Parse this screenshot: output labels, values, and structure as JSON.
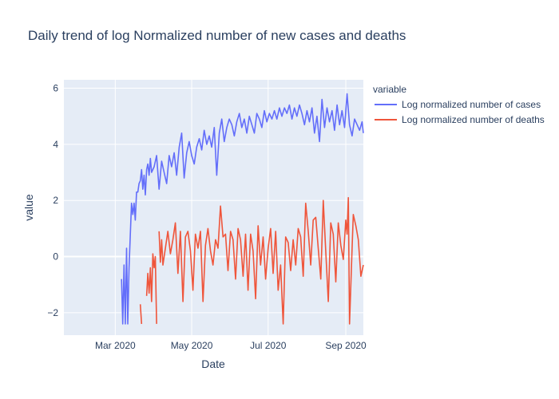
{
  "chart_data": {
    "type": "line",
    "title": "Daily trend of log Normalized number of new cases and deaths",
    "xlabel": "Date",
    "ylabel": "value",
    "x_range": [
      "2020-01-20",
      "2020-09-15"
    ],
    "ylim": [
      -2.8,
      6.3
    ],
    "x_ticks": [
      {
        "date": "2020-03-01",
        "label": "Mar 2020"
      },
      {
        "date": "2020-05-01",
        "label": "May 2020"
      },
      {
        "date": "2020-07-01",
        "label": "Jul 2020"
      },
      {
        "date": "2020-09-01",
        "label": "Sep 2020"
      }
    ],
    "y_ticks": [
      -2,
      0,
      2,
      4,
      6
    ],
    "grid": true,
    "legend": {
      "title": "variable",
      "position": "right"
    },
    "series": [
      {
        "name": "Log normalized number of cases",
        "color": "#636efa",
        "points": [
          [
            "2020-03-06",
            -0.8
          ],
          [
            "2020-03-07",
            -2.4
          ],
          [
            "2020-03-08",
            -0.3
          ],
          [
            "2020-03-09",
            -2.4
          ],
          [
            "2020-03-10",
            0.3
          ],
          [
            "2020-03-11",
            -2.4
          ],
          [
            "2020-03-12",
            -0.4
          ],
          [
            "2020-03-13",
            0.8
          ],
          [
            "2020-03-14",
            1.9
          ],
          [
            "2020-03-15",
            1.5
          ],
          [
            "2020-03-16",
            1.9
          ],
          [
            "2020-03-17",
            1.3
          ],
          [
            "2020-03-18",
            2.3
          ],
          [
            "2020-03-19",
            2.3
          ],
          [
            "2020-03-20",
            2.6
          ],
          [
            "2020-03-21",
            2.7
          ],
          [
            "2020-03-22",
            3.1
          ],
          [
            "2020-03-23",
            2.4
          ],
          [
            "2020-03-24",
            2.9
          ],
          [
            "2020-03-25",
            2.2
          ],
          [
            "2020-03-26",
            3.1
          ],
          [
            "2020-03-27",
            3.3
          ],
          [
            "2020-03-28",
            2.9
          ],
          [
            "2020-03-29",
            3.5
          ],
          [
            "2020-03-30",
            3.0
          ],
          [
            "2020-04-01",
            3.2
          ],
          [
            "2020-04-03",
            3.6
          ],
          [
            "2020-04-05",
            2.4
          ],
          [
            "2020-04-07",
            3.4
          ],
          [
            "2020-04-09",
            3.0
          ],
          [
            "2020-04-11",
            2.6
          ],
          [
            "2020-04-13",
            3.6
          ],
          [
            "2020-04-15",
            3.2
          ],
          [
            "2020-04-17",
            3.7
          ],
          [
            "2020-04-19",
            2.9
          ],
          [
            "2020-04-21",
            3.9
          ],
          [
            "2020-04-23",
            4.4
          ],
          [
            "2020-04-25",
            2.8
          ],
          [
            "2020-04-27",
            3.7
          ],
          [
            "2020-04-29",
            4.1
          ],
          [
            "2020-05-01",
            3.6
          ],
          [
            "2020-05-03",
            3.3
          ],
          [
            "2020-05-05",
            3.9
          ],
          [
            "2020-05-07",
            4.2
          ],
          [
            "2020-05-09",
            3.8
          ],
          [
            "2020-05-11",
            4.5
          ],
          [
            "2020-05-13",
            4.0
          ],
          [
            "2020-05-15",
            4.3
          ],
          [
            "2020-05-17",
            3.9
          ],
          [
            "2020-05-19",
            4.6
          ],
          [
            "2020-05-21",
            2.9
          ],
          [
            "2020-05-23",
            4.4
          ],
          [
            "2020-05-25",
            4.9
          ],
          [
            "2020-05-27",
            4.1
          ],
          [
            "2020-05-29",
            4.6
          ],
          [
            "2020-05-31",
            4.9
          ],
          [
            "2020-06-02",
            4.7
          ],
          [
            "2020-06-04",
            4.3
          ],
          [
            "2020-06-06",
            4.8
          ],
          [
            "2020-06-08",
            5.1
          ],
          [
            "2020-06-10",
            4.6
          ],
          [
            "2020-06-12",
            4.9
          ],
          [
            "2020-06-14",
            4.4
          ],
          [
            "2020-06-16",
            5.0
          ],
          [
            "2020-06-18",
            4.7
          ],
          [
            "2020-06-20",
            4.4
          ],
          [
            "2020-06-22",
            5.1
          ],
          [
            "2020-06-24",
            4.9
          ],
          [
            "2020-06-26",
            4.6
          ],
          [
            "2020-06-28",
            5.2
          ],
          [
            "2020-06-30",
            4.8
          ],
          [
            "2020-07-02",
            5.1
          ],
          [
            "2020-07-04",
            4.9
          ],
          [
            "2020-07-06",
            5.2
          ],
          [
            "2020-07-08",
            4.9
          ],
          [
            "2020-07-10",
            5.3
          ],
          [
            "2020-07-12",
            5.0
          ],
          [
            "2020-07-14",
            5.3
          ],
          [
            "2020-07-16",
            5.1
          ],
          [
            "2020-07-18",
            5.4
          ],
          [
            "2020-07-20",
            4.9
          ],
          [
            "2020-07-22",
            5.3
          ],
          [
            "2020-07-24",
            5.0
          ],
          [
            "2020-07-26",
            5.4
          ],
          [
            "2020-07-28",
            5.1
          ],
          [
            "2020-07-30",
            4.7
          ],
          [
            "2020-08-01",
            5.2
          ],
          [
            "2020-08-03",
            4.8
          ],
          [
            "2020-08-05",
            5.3
          ],
          [
            "2020-08-07",
            4.4
          ],
          [
            "2020-08-09",
            5.0
          ],
          [
            "2020-08-11",
            4.1
          ],
          [
            "2020-08-13",
            5.6
          ],
          [
            "2020-08-15",
            4.6
          ],
          [
            "2020-08-17",
            5.3
          ],
          [
            "2020-08-19",
            4.8
          ],
          [
            "2020-08-21",
            5.2
          ],
          [
            "2020-08-23",
            4.5
          ],
          [
            "2020-08-25",
            5.4
          ],
          [
            "2020-08-27",
            4.7
          ],
          [
            "2020-08-29",
            5.2
          ],
          [
            "2020-08-31",
            4.6
          ],
          [
            "2020-09-02",
            5.8
          ],
          [
            "2020-09-04",
            4.7
          ],
          [
            "2020-09-06",
            4.3
          ],
          [
            "2020-09-08",
            4.9
          ],
          [
            "2020-09-10",
            4.7
          ],
          [
            "2020-09-12",
            4.5
          ],
          [
            "2020-09-14",
            4.8
          ],
          [
            "2020-09-15",
            4.4
          ]
        ]
      },
      {
        "name": "Log normalized number of deaths",
        "color": "#ef553b",
        "points": [
          [
            "2020-03-21",
            -1.7
          ],
          [
            "2020-03-22",
            -2.4
          ],
          null,
          [
            "2020-03-26",
            -1.4
          ],
          [
            "2020-03-27",
            -0.6
          ],
          [
            "2020-03-28",
            -1.3
          ],
          [
            "2020-03-29",
            -0.4
          ],
          [
            "2020-03-30",
            -1.6
          ],
          [
            "2020-03-31",
            0.1
          ],
          [
            "2020-04-01",
            -0.4
          ],
          [
            "2020-04-02",
            0.0
          ],
          [
            "2020-04-03",
            -2.4
          ],
          null,
          [
            "2020-04-05",
            0.9
          ],
          [
            "2020-04-06",
            -0.2
          ],
          [
            "2020-04-07",
            0.6
          ],
          [
            "2020-04-08",
            -0.3
          ],
          [
            "2020-04-10",
            0.3
          ],
          [
            "2020-04-12",
            0.9
          ],
          [
            "2020-04-14",
            0.1
          ],
          [
            "2020-04-16",
            0.6
          ],
          [
            "2020-04-18",
            1.2
          ],
          [
            "2020-04-20",
            -0.6
          ],
          [
            "2020-04-22",
            0.9
          ],
          [
            "2020-04-24",
            -1.6
          ],
          [
            "2020-04-26",
            0.7
          ],
          [
            "2020-04-28",
            0.9
          ],
          [
            "2020-04-30",
            0.2
          ],
          [
            "2020-05-02",
            -1.2
          ],
          [
            "2020-05-04",
            0.8
          ],
          [
            "2020-05-06",
            0.3
          ],
          [
            "2020-05-08",
            0.9
          ],
          [
            "2020-05-10",
            -1.6
          ],
          [
            "2020-05-12",
            0.4
          ],
          [
            "2020-05-14",
            1.0
          ],
          [
            "2020-05-16",
            0.2
          ],
          [
            "2020-05-18",
            -0.3
          ],
          [
            "2020-05-20",
            0.6
          ],
          [
            "2020-05-22",
            0.3
          ],
          [
            "2020-05-24",
            1.8
          ],
          [
            "2020-05-26",
            0.7
          ],
          [
            "2020-05-28",
            0.8
          ],
          [
            "2020-05-30",
            -0.5
          ],
          [
            "2020-06-01",
            0.9
          ],
          [
            "2020-06-03",
            0.6
          ],
          [
            "2020-06-05",
            -0.8
          ],
          [
            "2020-06-07",
            1.0
          ],
          [
            "2020-06-09",
            0.6
          ],
          [
            "2020-06-11",
            -0.7
          ],
          [
            "2020-06-13",
            0.8
          ],
          [
            "2020-06-15",
            -1.2
          ],
          [
            "2020-06-17",
            0.8
          ],
          [
            "2020-06-19",
            0.2
          ],
          [
            "2020-06-21",
            -1.5
          ],
          [
            "2020-06-23",
            1.1
          ],
          [
            "2020-06-25",
            -0.3
          ],
          [
            "2020-06-27",
            0.7
          ],
          [
            "2020-06-29",
            -0.8
          ],
          [
            "2020-07-01",
            0.3
          ],
          [
            "2020-07-03",
            1.0
          ],
          [
            "2020-07-05",
            -0.6
          ],
          [
            "2020-07-07",
            0.9
          ],
          [
            "2020-07-09",
            -1.2
          ],
          [
            "2020-07-11",
            -0.3
          ],
          [
            "2020-07-13",
            -2.4
          ],
          [
            "2020-07-15",
            0.7
          ],
          [
            "2020-07-17",
            0.5
          ],
          [
            "2020-07-19",
            -0.5
          ],
          [
            "2020-07-21",
            0.6
          ],
          [
            "2020-07-23",
            -0.3
          ],
          [
            "2020-07-25",
            1.0
          ],
          [
            "2020-07-27",
            0.7
          ],
          [
            "2020-07-29",
            -0.7
          ],
          [
            "2020-07-31",
            1.9
          ],
          [
            "2020-08-02",
            0.9
          ],
          [
            "2020-08-04",
            -0.3
          ],
          [
            "2020-08-06",
            1.3
          ],
          [
            "2020-08-08",
            1.4
          ],
          [
            "2020-08-10",
            0.3
          ],
          [
            "2020-08-12",
            -0.8
          ],
          [
            "2020-08-14",
            2.0
          ],
          [
            "2020-08-16",
            0.2
          ],
          [
            "2020-08-18",
            -1.6
          ],
          [
            "2020-08-20",
            1.2
          ],
          [
            "2020-08-22",
            0.8
          ],
          [
            "2020-08-24",
            -0.9
          ],
          [
            "2020-08-26",
            1.2
          ],
          [
            "2020-08-28",
            0.4
          ],
          [
            "2020-08-30",
            -0.1
          ],
          [
            "2020-09-01",
            1.3
          ],
          [
            "2020-09-02",
            0.8
          ],
          [
            "2020-09-03",
            2.1
          ],
          [
            "2020-09-04",
            -2.4
          ],
          [
            "2020-09-06",
            0.3
          ],
          [
            "2020-09-07",
            1.5
          ],
          [
            "2020-09-09",
            1.1
          ],
          [
            "2020-09-11",
            0.6
          ],
          [
            "2020-09-13",
            -0.7
          ],
          [
            "2020-09-15",
            -0.3
          ]
        ]
      }
    ]
  }
}
